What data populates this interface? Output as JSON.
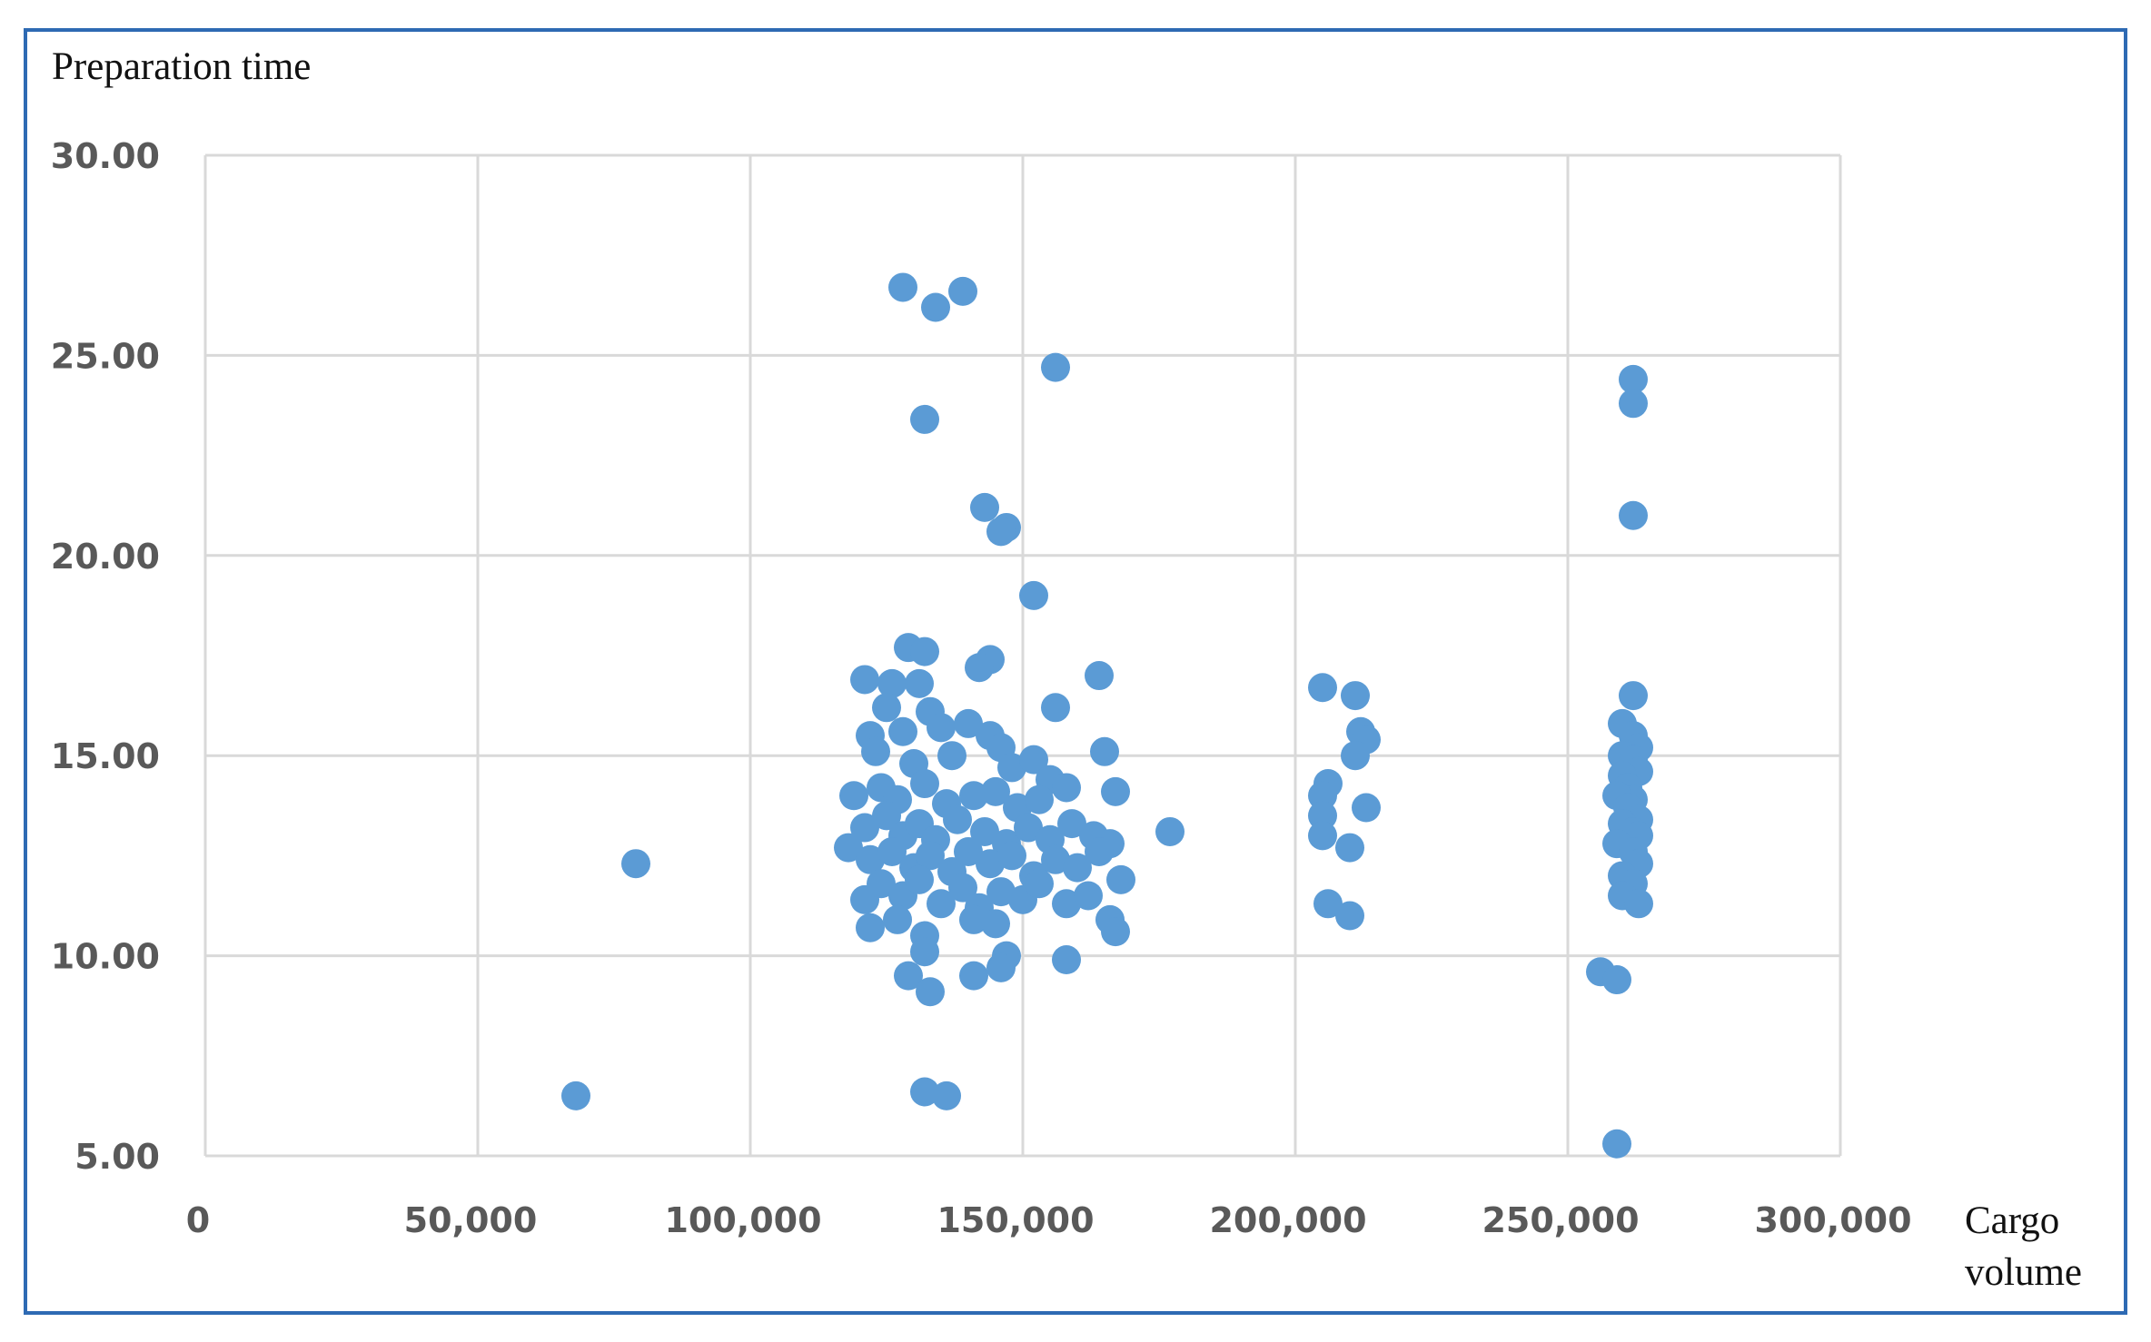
{
  "chart_data": {
    "type": "scatter",
    "title": "",
    "ylabel": "Preparation time",
    "xlabel_lines": [
      "Cargo",
      "volume"
    ],
    "xlim": [
      0,
      300000
    ],
    "ylim": [
      5,
      30
    ],
    "x_ticks": [
      0,
      50000,
      100000,
      150000,
      200000,
      250000,
      300000
    ],
    "x_tick_labels": [
      "0",
      "50,000",
      "100,000",
      "150,000",
      "200,000",
      "250,000",
      "300,000"
    ],
    "y_ticks": [
      5,
      10,
      15,
      20,
      25,
      30
    ],
    "y_tick_labels": [
      "5.00",
      "10.00",
      "15.00",
      "20.00",
      "25.00",
      "30.00"
    ],
    "grid": true,
    "legend": "none",
    "marker_color": "#5b9bd5",
    "grid_color": "#d9d9d9",
    "frame_color": "#2e6ab3",
    "points": [
      [
        68000,
        6.5
      ],
      [
        79000,
        12.3
      ],
      [
        128000,
        26.7
      ],
      [
        134000,
        26.2
      ],
      [
        139000,
        26.6
      ],
      [
        156000,
        24.7
      ],
      [
        132000,
        23.4
      ],
      [
        143000,
        21.2
      ],
      [
        147000,
        20.7
      ],
      [
        146000,
        20.6
      ],
      [
        152000,
        19.0
      ],
      [
        129000,
        17.7
      ],
      [
        132000,
        17.6
      ],
      [
        144000,
        17.4
      ],
      [
        142000,
        17.2
      ],
      [
        164000,
        17.0
      ],
      [
        121000,
        16.9
      ],
      [
        126000,
        16.8
      ],
      [
        131000,
        16.8
      ],
      [
        125000,
        16.2
      ],
      [
        133000,
        16.1
      ],
      [
        156000,
        16.2
      ],
      [
        122000,
        15.5
      ],
      [
        128000,
        15.6
      ],
      [
        135000,
        15.7
      ],
      [
        140000,
        15.8
      ],
      [
        144000,
        15.5
      ],
      [
        146000,
        15.2
      ],
      [
        123000,
        15.1
      ],
      [
        130000,
        14.8
      ],
      [
        137000,
        15.0
      ],
      [
        148000,
        14.7
      ],
      [
        152000,
        14.9
      ],
      [
        155000,
        14.4
      ],
      [
        165000,
        15.1
      ],
      [
        119000,
        14.0
      ],
      [
        124000,
        14.2
      ],
      [
        127000,
        13.9
      ],
      [
        132000,
        14.3
      ],
      [
        136000,
        13.8
      ],
      [
        141000,
        14.0
      ],
      [
        145000,
        14.1
      ],
      [
        149000,
        13.7
      ],
      [
        153000,
        13.9
      ],
      [
        158000,
        14.2
      ],
      [
        167000,
        14.1
      ],
      [
        121000,
        13.2
      ],
      [
        125000,
        13.5
      ],
      [
        128000,
        13.0
      ],
      [
        131000,
        13.3
      ],
      [
        134000,
        12.9
      ],
      [
        138000,
        13.4
      ],
      [
        143000,
        13.1
      ],
      [
        147000,
        12.8
      ],
      [
        151000,
        13.2
      ],
      [
        155000,
        12.9
      ],
      [
        159000,
        13.3
      ],
      [
        163000,
        13.0
      ],
      [
        166000,
        12.8
      ],
      [
        177000,
        13.1
      ],
      [
        118000,
        12.7
      ],
      [
        122000,
        12.4
      ],
      [
        126000,
        12.6
      ],
      [
        130000,
        12.2
      ],
      [
        133000,
        12.5
      ],
      [
        137000,
        12.1
      ],
      [
        140000,
        12.6
      ],
      [
        144000,
        12.3
      ],
      [
        148000,
        12.5
      ],
      [
        152000,
        12.0
      ],
      [
        156000,
        12.4
      ],
      [
        160000,
        12.2
      ],
      [
        164000,
        12.6
      ],
      [
        121000,
        11.4
      ],
      [
        124000,
        11.8
      ],
      [
        128000,
        11.5
      ],
      [
        131000,
        11.9
      ],
      [
        135000,
        11.3
      ],
      [
        139000,
        11.7
      ],
      [
        142000,
        11.2
      ],
      [
        146000,
        11.6
      ],
      [
        150000,
        11.4
      ],
      [
        153000,
        11.8
      ],
      [
        158000,
        11.3
      ],
      [
        162000,
        11.5
      ],
      [
        168000,
        11.9
      ],
      [
        122000,
        10.7
      ],
      [
        127000,
        10.9
      ],
      [
        132000,
        10.5
      ],
      [
        141000,
        10.9
      ],
      [
        145000,
        10.8
      ],
      [
        166000,
        10.9
      ],
      [
        167000,
        10.6
      ],
      [
        132000,
        10.1
      ],
      [
        147000,
        10.0
      ],
      [
        158000,
        9.9
      ],
      [
        146000,
        9.7
      ],
      [
        129000,
        9.5
      ],
      [
        141000,
        9.5
      ],
      [
        133000,
        9.1
      ],
      [
        132000,
        6.6
      ],
      [
        136000,
        6.5
      ],
      [
        205000,
        16.7
      ],
      [
        211000,
        16.5
      ],
      [
        212000,
        15.6
      ],
      [
        213000,
        15.4
      ],
      [
        211000,
        15.0
      ],
      [
        206000,
        14.3
      ],
      [
        205000,
        14.0
      ],
      [
        205000,
        13.5
      ],
      [
        213000,
        13.7
      ],
      [
        205000,
        13.0
      ],
      [
        210000,
        12.7
      ],
      [
        206000,
        11.3
      ],
      [
        210000,
        11.0
      ],
      [
        262000,
        24.4
      ],
      [
        262000,
        23.8
      ],
      [
        262000,
        21.0
      ],
      [
        262000,
        16.5
      ],
      [
        260000,
        15.8
      ],
      [
        262000,
        15.5
      ],
      [
        263000,
        15.2
      ],
      [
        260000,
        15.0
      ],
      [
        262000,
        14.9
      ],
      [
        263000,
        14.6
      ],
      [
        260000,
        14.5
      ],
      [
        261000,
        14.2
      ],
      [
        262000,
        13.9
      ],
      [
        259000,
        14.0
      ],
      [
        261000,
        13.7
      ],
      [
        263000,
        13.4
      ],
      [
        260000,
        13.3
      ],
      [
        262000,
        13.1
      ],
      [
        263000,
        13.0
      ],
      [
        259000,
        12.8
      ],
      [
        262000,
        12.6
      ],
      [
        263000,
        12.3
      ],
      [
        260000,
        12.0
      ],
      [
        262000,
        11.8
      ],
      [
        260000,
        11.5
      ],
      [
        263000,
        11.3
      ],
      [
        256000,
        9.6
      ],
      [
        259000,
        9.4
      ],
      [
        259000,
        5.3
      ]
    ]
  }
}
